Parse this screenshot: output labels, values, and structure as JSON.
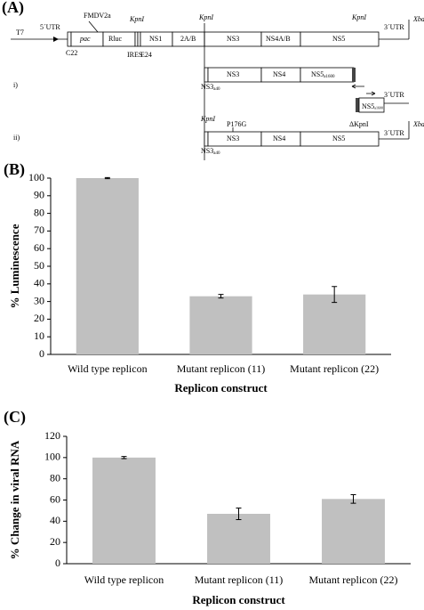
{
  "diagram": {
    "panel_label": "(A)",
    "promoter": "T7",
    "utr5": "5´UTR",
    "utr3": "3´UTR",
    "xba": "XbaI",
    "markers": [
      "FMDV2a",
      "KpnI",
      "KpnI",
      "KpnI",
      "C22",
      "IRES",
      "E24"
    ],
    "genes": [
      "pac",
      "Rluc",
      "NS1",
      "2A/B",
      "NS3",
      "NS4A/B",
      "NS5"
    ],
    "construct_i": {
      "label": "i)",
      "ns3": {
        "text": "NS3",
        "sub": "a40"
      },
      "genes": [
        "NS3",
        "NS4"
      ],
      "ns5": {
        "text": "NS5",
        "sub": "a1600"
      },
      "fragment": {
        "text": "NS5",
        "sub": "a1600"
      },
      "utr3": "3´UTR"
    },
    "construct_ii": {
      "label": "ii)",
      "ns3": {
        "text": "NS3",
        "sub": "a40"
      },
      "markers": [
        "KpnI",
        "P176G",
        "ΔKpnI"
      ],
      "genes": [
        "NS3",
        "NS4",
        "NS5"
      ],
      "utr3": "3´UTR",
      "xba": "XbaI"
    }
  },
  "chart_data": [
    {
      "type": "bar",
      "panel_label": "(B)",
      "y_label": "% Luminescence",
      "x_label": "Replicon construct",
      "categories": [
        "Wild type replicon",
        "Mutant replicon (11)",
        "Mutant replicon (22)"
      ],
      "values": [
        100,
        33,
        34
      ],
      "errors": [
        0.3,
        1,
        4.5
      ],
      "color": "#c0c0c0",
      "ylim": [
        0,
        100
      ],
      "yticks": [
        0,
        10,
        20,
        30,
        40,
        50,
        60,
        70,
        80,
        90,
        100
      ]
    },
    {
      "type": "bar",
      "panel_label": "(C)",
      "y_label": "% Change in viral RNA",
      "x_label": "Replicon construct",
      "categories": [
        "Wild type replicon",
        "Mutant replicon (11)",
        "Mutant replicon (22)"
      ],
      "values": [
        100,
        47,
        61
      ],
      "errors": [
        1,
        5.5,
        4
      ],
      "color": "#c0c0c0",
      "ylim": [
        0,
        120
      ],
      "yticks": [
        0,
        20,
        40,
        60,
        80,
        100,
        120
      ]
    }
  ]
}
